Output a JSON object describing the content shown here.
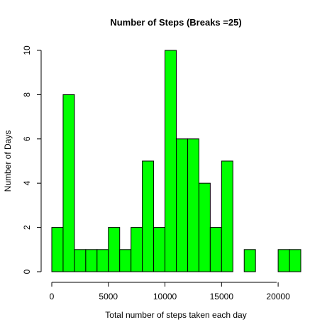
{
  "chart_data": {
    "type": "bar",
    "title": "Number of Steps (Breaks =25)",
    "xlabel": "Total number of steps taken each day",
    "ylabel": "Number of Days",
    "bin_width": 1000,
    "bin_starts": [
      0,
      1000,
      2000,
      3000,
      4000,
      5000,
      6000,
      7000,
      8000,
      9000,
      10000,
      11000,
      12000,
      13000,
      14000,
      15000,
      16000,
      17000,
      18000,
      19000,
      20000,
      21000
    ],
    "values": [
      2,
      8,
      1,
      1,
      1,
      2,
      1,
      2,
      5,
      2,
      10,
      6,
      6,
      4,
      2,
      5,
      0,
      1,
      0,
      0,
      1,
      1
    ],
    "xlim": [
      0,
      22000
    ],
    "ylim": [
      0,
      10
    ],
    "x_ticks": [
      0,
      5000,
      10000,
      15000,
      20000
    ],
    "x_tick_labels": [
      "0",
      "5000",
      "10000",
      "15000",
      "20000"
    ],
    "y_ticks": [
      0,
      2,
      4,
      6,
      8,
      10
    ],
    "y_tick_labels": [
      "0",
      "2",
      "4",
      "6",
      "8",
      "10"
    ],
    "bar_color": "#00ff00",
    "bar_edge_color": "#000000",
    "grid": false
  }
}
